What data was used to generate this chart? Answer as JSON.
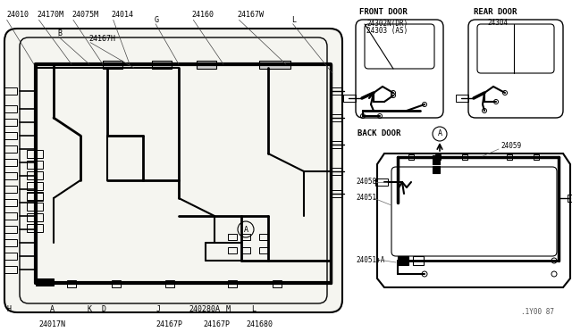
{
  "bg_color": "#ffffff",
  "line_color": "#000000",
  "text_color": "#000000",
  "fig_width": 6.4,
  "fig_height": 3.72,
  "dpi": 100,
  "version_text": ".1Y00 87",
  "top_labels": [
    {
      "text": "24010",
      "xf": 0.012,
      "yf": 0.955
    },
    {
      "text": "24170M",
      "xf": 0.065,
      "yf": 0.955
    },
    {
      "text": "24075M",
      "xf": 0.125,
      "yf": 0.955
    },
    {
      "text": "24014",
      "xf": 0.195,
      "yf": 0.955
    },
    {
      "text": "G",
      "xf": 0.27,
      "yf": 0.94
    },
    {
      "text": "24160",
      "xf": 0.335,
      "yf": 0.955
    },
    {
      "text": "24167W",
      "xf": 0.415,
      "yf": 0.955
    },
    {
      "text": "L",
      "xf": 0.51,
      "yf": 0.94
    },
    {
      "text": "B",
      "xf": 0.1,
      "yf": 0.9
    },
    {
      "text": "24167H",
      "xf": 0.155,
      "yf": 0.882
    }
  ],
  "bottom_labels": [
    {
      "text": "H",
      "xf": 0.012,
      "yf": 0.068
    },
    {
      "text": "A",
      "xf": 0.088,
      "yf": 0.068
    },
    {
      "text": "K",
      "xf": 0.152,
      "yf": 0.068
    },
    {
      "text": "D",
      "xf": 0.177,
      "yf": 0.068
    },
    {
      "text": "J",
      "xf": 0.272,
      "yf": 0.068
    },
    {
      "text": "240280A",
      "xf": 0.33,
      "yf": 0.068
    },
    {
      "text": "M",
      "xf": 0.395,
      "yf": 0.068
    },
    {
      "text": "L",
      "xf": 0.44,
      "yf": 0.068
    },
    {
      "text": "24017N",
      "xf": 0.068,
      "yf": 0.022
    },
    {
      "text": "24167P",
      "xf": 0.272,
      "yf": 0.022
    },
    {
      "text": "24167P",
      "xf": 0.355,
      "yf": 0.022
    },
    {
      "text": "241680",
      "xf": 0.43,
      "yf": 0.022
    }
  ]
}
